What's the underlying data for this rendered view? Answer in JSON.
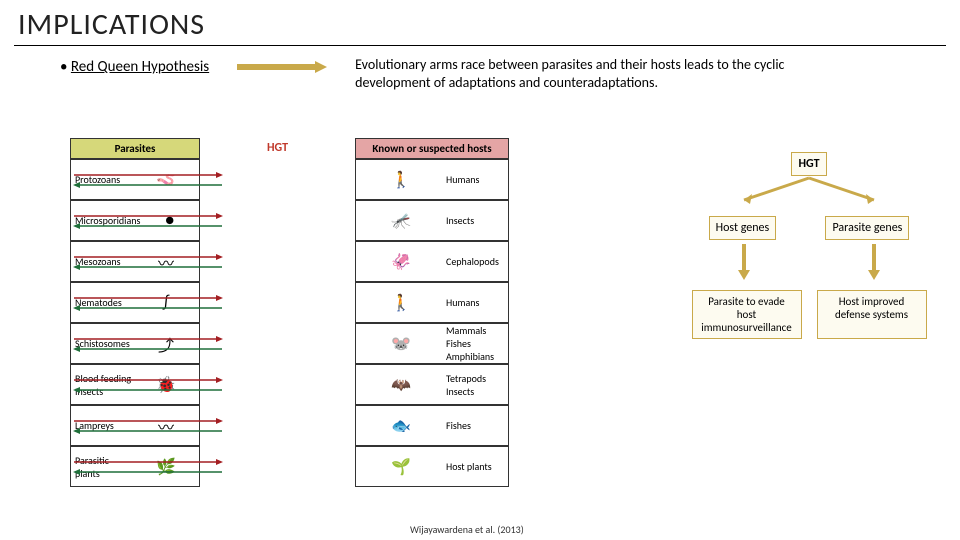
{
  "title": "IMPLICATIONS",
  "hypothesis": {
    "bullet": "•",
    "label": "Red Queen Hypothesis",
    "definition": "Evolutionary arms race between parasites and their hosts leads to the cyclic development of adaptations and counteradaptations."
  },
  "arrow_colors": {
    "parasite_to_host": "#a41e22",
    "host_to_parasite": "#1f6f3a"
  },
  "table": {
    "parasite_header": "Parasites",
    "host_header": "Known or suspected hosts",
    "hgt_header": "HGT",
    "rows": [
      {
        "parasite": "Protozoans",
        "p_icon": "🪱",
        "host": "Humans",
        "h_icon": "🚶"
      },
      {
        "parasite": "Microsporidians",
        "p_icon": "●",
        "host": "Insects",
        "h_icon": "🦟"
      },
      {
        "parasite": "Mesozoans",
        "p_icon": "〰",
        "host": "Cephalopods",
        "h_icon": "🦑"
      },
      {
        "parasite": "Nematodes",
        "p_icon": "∫",
        "host": "Humans",
        "h_icon": "🚶"
      },
      {
        "parasite": "Schistosomes",
        "p_icon": "⤴",
        "host": "Mammals\nFishes\nAmphibians",
        "h_icon": "🐭"
      },
      {
        "parasite": "Blood feeding Insects",
        "p_icon": "🐞",
        "host": "Tetrapods\nInsects",
        "h_icon": "🦇"
      },
      {
        "parasite": "Lampreys",
        "p_icon": "〰",
        "host": "Fishes",
        "h_icon": "🐟"
      },
      {
        "parasite": "Parasitic plants",
        "p_icon": "🌿",
        "host": "Host plants",
        "h_icon": "🌱"
      }
    ]
  },
  "flow": {
    "top": "HGT",
    "mid_left": "Host genes",
    "mid_right": "Parasite genes",
    "bot_left": "Parasite to evade host immunosurveillance",
    "bot_right": "Host improved defense systems",
    "arrow_color": "#c9a94a"
  },
  "citation": "Wijayawardena et al. (2013)",
  "colors": {
    "parasite_header_bg": "#d6d87a",
    "host_header_bg": "#e4a5a5",
    "flow_border": "#c9a94a",
    "flow_bg": "#fdfbf0"
  }
}
